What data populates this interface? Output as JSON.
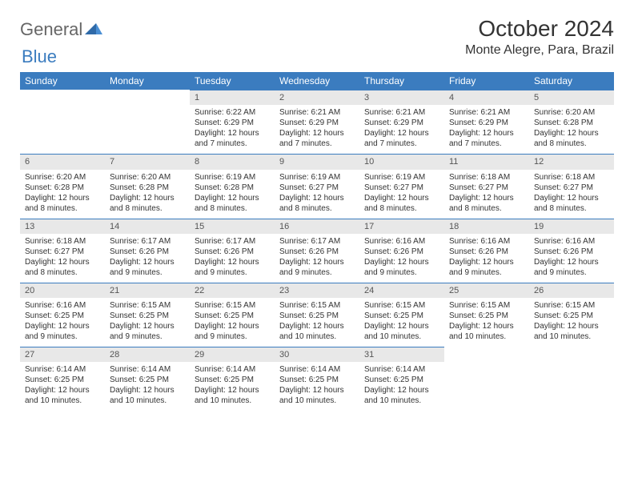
{
  "logo": {
    "text1": "General",
    "text2": "Blue"
  },
  "title": "October 2024",
  "location": "Monte Alegre, Para, Brazil",
  "colors": {
    "header_bg": "#3b7cbf",
    "header_text": "#ffffff",
    "daynum_bg": "#e8e8e8",
    "daynum_border": "#3b7cbf",
    "text": "#333333"
  },
  "weekdays": [
    "Sunday",
    "Monday",
    "Tuesday",
    "Wednesday",
    "Thursday",
    "Friday",
    "Saturday"
  ],
  "weeks": [
    [
      null,
      null,
      {
        "n": "1",
        "sr": "Sunrise: 6:22 AM",
        "ss": "Sunset: 6:29 PM",
        "dl": "Daylight: 12 hours and 7 minutes."
      },
      {
        "n": "2",
        "sr": "Sunrise: 6:21 AM",
        "ss": "Sunset: 6:29 PM",
        "dl": "Daylight: 12 hours and 7 minutes."
      },
      {
        "n": "3",
        "sr": "Sunrise: 6:21 AM",
        "ss": "Sunset: 6:29 PM",
        "dl": "Daylight: 12 hours and 7 minutes."
      },
      {
        "n": "4",
        "sr": "Sunrise: 6:21 AM",
        "ss": "Sunset: 6:29 PM",
        "dl": "Daylight: 12 hours and 7 minutes."
      },
      {
        "n": "5",
        "sr": "Sunrise: 6:20 AM",
        "ss": "Sunset: 6:28 PM",
        "dl": "Daylight: 12 hours and 8 minutes."
      }
    ],
    [
      {
        "n": "6",
        "sr": "Sunrise: 6:20 AM",
        "ss": "Sunset: 6:28 PM",
        "dl": "Daylight: 12 hours and 8 minutes."
      },
      {
        "n": "7",
        "sr": "Sunrise: 6:20 AM",
        "ss": "Sunset: 6:28 PM",
        "dl": "Daylight: 12 hours and 8 minutes."
      },
      {
        "n": "8",
        "sr": "Sunrise: 6:19 AM",
        "ss": "Sunset: 6:28 PM",
        "dl": "Daylight: 12 hours and 8 minutes."
      },
      {
        "n": "9",
        "sr": "Sunrise: 6:19 AM",
        "ss": "Sunset: 6:27 PM",
        "dl": "Daylight: 12 hours and 8 minutes."
      },
      {
        "n": "10",
        "sr": "Sunrise: 6:19 AM",
        "ss": "Sunset: 6:27 PM",
        "dl": "Daylight: 12 hours and 8 minutes."
      },
      {
        "n": "11",
        "sr": "Sunrise: 6:18 AM",
        "ss": "Sunset: 6:27 PM",
        "dl": "Daylight: 12 hours and 8 minutes."
      },
      {
        "n": "12",
        "sr": "Sunrise: 6:18 AM",
        "ss": "Sunset: 6:27 PM",
        "dl": "Daylight: 12 hours and 8 minutes."
      }
    ],
    [
      {
        "n": "13",
        "sr": "Sunrise: 6:18 AM",
        "ss": "Sunset: 6:27 PM",
        "dl": "Daylight: 12 hours and 8 minutes."
      },
      {
        "n": "14",
        "sr": "Sunrise: 6:17 AM",
        "ss": "Sunset: 6:26 PM",
        "dl": "Daylight: 12 hours and 9 minutes."
      },
      {
        "n": "15",
        "sr": "Sunrise: 6:17 AM",
        "ss": "Sunset: 6:26 PM",
        "dl": "Daylight: 12 hours and 9 minutes."
      },
      {
        "n": "16",
        "sr": "Sunrise: 6:17 AM",
        "ss": "Sunset: 6:26 PM",
        "dl": "Daylight: 12 hours and 9 minutes."
      },
      {
        "n": "17",
        "sr": "Sunrise: 6:16 AM",
        "ss": "Sunset: 6:26 PM",
        "dl": "Daylight: 12 hours and 9 minutes."
      },
      {
        "n": "18",
        "sr": "Sunrise: 6:16 AM",
        "ss": "Sunset: 6:26 PM",
        "dl": "Daylight: 12 hours and 9 minutes."
      },
      {
        "n": "19",
        "sr": "Sunrise: 6:16 AM",
        "ss": "Sunset: 6:26 PM",
        "dl": "Daylight: 12 hours and 9 minutes."
      }
    ],
    [
      {
        "n": "20",
        "sr": "Sunrise: 6:16 AM",
        "ss": "Sunset: 6:25 PM",
        "dl": "Daylight: 12 hours and 9 minutes."
      },
      {
        "n": "21",
        "sr": "Sunrise: 6:15 AM",
        "ss": "Sunset: 6:25 PM",
        "dl": "Daylight: 12 hours and 9 minutes."
      },
      {
        "n": "22",
        "sr": "Sunrise: 6:15 AM",
        "ss": "Sunset: 6:25 PM",
        "dl": "Daylight: 12 hours and 9 minutes."
      },
      {
        "n": "23",
        "sr": "Sunrise: 6:15 AM",
        "ss": "Sunset: 6:25 PM",
        "dl": "Daylight: 12 hours and 10 minutes."
      },
      {
        "n": "24",
        "sr": "Sunrise: 6:15 AM",
        "ss": "Sunset: 6:25 PM",
        "dl": "Daylight: 12 hours and 10 minutes."
      },
      {
        "n": "25",
        "sr": "Sunrise: 6:15 AM",
        "ss": "Sunset: 6:25 PM",
        "dl": "Daylight: 12 hours and 10 minutes."
      },
      {
        "n": "26",
        "sr": "Sunrise: 6:15 AM",
        "ss": "Sunset: 6:25 PM",
        "dl": "Daylight: 12 hours and 10 minutes."
      }
    ],
    [
      {
        "n": "27",
        "sr": "Sunrise: 6:14 AM",
        "ss": "Sunset: 6:25 PM",
        "dl": "Daylight: 12 hours and 10 minutes."
      },
      {
        "n": "28",
        "sr": "Sunrise: 6:14 AM",
        "ss": "Sunset: 6:25 PM",
        "dl": "Daylight: 12 hours and 10 minutes."
      },
      {
        "n": "29",
        "sr": "Sunrise: 6:14 AM",
        "ss": "Sunset: 6:25 PM",
        "dl": "Daylight: 12 hours and 10 minutes."
      },
      {
        "n": "30",
        "sr": "Sunrise: 6:14 AM",
        "ss": "Sunset: 6:25 PM",
        "dl": "Daylight: 12 hours and 10 minutes."
      },
      {
        "n": "31",
        "sr": "Sunrise: 6:14 AM",
        "ss": "Sunset: 6:25 PM",
        "dl": "Daylight: 12 hours and 10 minutes."
      },
      null,
      null
    ]
  ]
}
